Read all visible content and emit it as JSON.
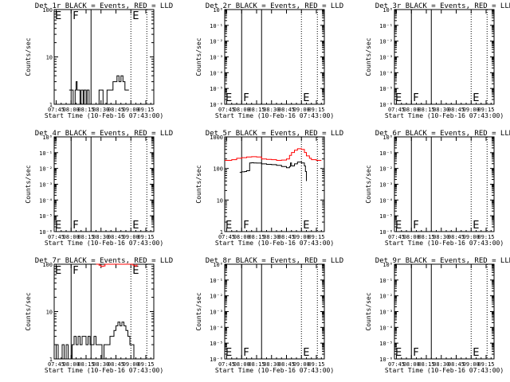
{
  "chart_data": [
    {
      "type": "line",
      "title": "Det 1r BLACK = Events, RED = LLD",
      "xlabel": "Start Time (10-Feb-16 07:43:00)",
      "ylabel": "Counts/sec",
      "x_tick_labels": [
        "07:45",
        "08:00",
        "08:15",
        "08:30",
        "08:45",
        "09:00",
        "09:15"
      ],
      "y_scale": "log",
      "ylim": [
        1,
        100
      ],
      "y_tick_labels": [
        "1",
        "10",
        "100"
      ],
      "markers": {
        "E": "E",
        "F": "F"
      },
      "series": [
        {
          "color": "#000000",
          "x": [
            "07:58",
            "08:00",
            "08:02",
            "08:04",
            "08:05",
            "08:06",
            "08:08",
            "08:09",
            "08:10",
            "08:12",
            "08:13",
            "08:15",
            "08:16",
            "08:18",
            "08:20",
            "08:22",
            "08:24",
            "08:26",
            "08:28",
            "08:30",
            "08:32",
            "08:34",
            "08:36",
            "08:38",
            "08:40",
            "08:42",
            "08:44",
            "08:46",
            "08:48",
            "08:50",
            "08:52",
            "08:54",
            "08:56",
            "08:58"
          ],
          "values": [
            2,
            2,
            1,
            2,
            3,
            2,
            2,
            1,
            2,
            1,
            2,
            1,
            2,
            1,
            1,
            1,
            1,
            1,
            2,
            2,
            1,
            1,
            2,
            2,
            2,
            3,
            3,
            4,
            3,
            4,
            3,
            2,
            2,
            2
          ]
        }
      ]
    },
    {
      "type": "line",
      "title": "Det 2r BLACK = Events, RED = LLD",
      "xlabel": "Start Time (10-Feb-16 07:43:00)",
      "ylabel": "Counts/sec",
      "x_tick_labels": [
        "07:45",
        "08:00",
        "08:15",
        "08:30",
        "08:45",
        "09:00",
        "09:15"
      ],
      "y_scale": "log",
      "ylim": [
        1e-06,
        1
      ],
      "y_tick_labels": [
        "10⁻⁶",
        "10⁻⁵",
        "10⁻⁴",
        "10⁻³",
        "10⁻²",
        "10⁻¹",
        "10⁰"
      ],
      "markers": {
        "E": "E",
        "F": "F"
      },
      "series": []
    },
    {
      "type": "line",
      "title": "Det 3r BLACK = Events, RED = LLD",
      "xlabel": "Start Time (10-Feb-16 07:43:00)",
      "ylabel": "Counts/sec",
      "x_tick_labels": [
        "07:45",
        "08:00",
        "08:15",
        "08:30",
        "08:45",
        "09:00",
        "09:15"
      ],
      "y_scale": "log",
      "ylim": [
        1e-06,
        1
      ],
      "y_tick_labels": [
        "10⁻⁶",
        "10⁻⁵",
        "10⁻⁴",
        "10⁻³",
        "10⁻²",
        "10⁻¹",
        "10⁰"
      ],
      "markers": {
        "E": "E",
        "F": "F"
      },
      "series": []
    },
    {
      "type": "line",
      "title": "Det 4r BLACK = Events, RED = LLD",
      "xlabel": "Start Time (10-Feb-16 07:43:00)",
      "ylabel": "Counts/sec",
      "x_tick_labels": [
        "07:45",
        "08:00",
        "08:15",
        "08:30",
        "08:45",
        "09:00",
        "09:15"
      ],
      "y_scale": "log",
      "ylim": [
        1e-06,
        1
      ],
      "y_tick_labels": [
        "10⁻⁶",
        "10⁻⁵",
        "10⁻⁴",
        "10⁻³",
        "10⁻²",
        "10⁻¹",
        "10⁰"
      ],
      "markers": {
        "E": "E",
        "F": "F"
      },
      "series": []
    },
    {
      "type": "line",
      "title": "Det 5r BLACK = Events, RED = LLD",
      "xlabel": "Start Time (10-Feb-16 07:43:00)",
      "ylabel": "Counts/sec",
      "x_tick_labels": [
        "07:45",
        "08:00",
        "08:15",
        "08:30",
        "08:45",
        "09:00",
        "09:15"
      ],
      "y_scale": "log",
      "ylim": [
        1,
        1000
      ],
      "y_tick_labels": [
        "1",
        "10",
        "100",
        "1000"
      ],
      "markers": {
        "E": "E",
        "F": "F"
      },
      "series": [
        {
          "color": "#ff0000",
          "x": [
            "07:43",
            "07:50",
            "07:55",
            "08:00",
            "08:05",
            "08:10",
            "08:15",
            "08:20",
            "08:25",
            "08:30",
            "08:35",
            "08:40",
            "08:45",
            "08:48",
            "08:50",
            "08:53",
            "08:56",
            "09:00",
            "09:03",
            "09:05",
            "09:08",
            "09:10",
            "09:15",
            "09:20"
          ],
          "values": [
            180,
            190,
            210,
            220,
            230,
            235,
            230,
            200,
            195,
            190,
            180,
            185,
            200,
            260,
            320,
            380,
            420,
            400,
            320,
            250,
            210,
            190,
            180,
            180
          ]
        },
        {
          "color": "#000000",
          "x": [
            "07:58",
            "08:00",
            "08:03",
            "08:05",
            "08:08",
            "08:10",
            "08:12",
            "08:15",
            "08:20",
            "08:25",
            "08:30",
            "08:35",
            "08:40",
            "08:45",
            "08:48",
            "08:49",
            "08:50",
            "08:53",
            "08:56",
            "09:00",
            "09:03",
            "09:04",
            "09:05"
          ],
          "values": [
            75,
            78,
            80,
            85,
            150,
            152,
            150,
            148,
            140,
            135,
            132,
            125,
            115,
            105,
            115,
            150,
            120,
            140,
            160,
            150,
            120,
            80,
            40
          ]
        }
      ]
    },
    {
      "type": "line",
      "title": "Det 6r BLACK = Events, RED = LLD",
      "xlabel": "Start Time (10-Feb-16 07:43:00)",
      "ylabel": "Counts/sec",
      "x_tick_labels": [
        "07:45",
        "08:00",
        "08:15",
        "08:30",
        "08:45",
        "09:00",
        "09:15"
      ],
      "y_scale": "log",
      "ylim": [
        1e-06,
        1
      ],
      "y_tick_labels": [
        "10⁻⁶",
        "10⁻⁵",
        "10⁻⁴",
        "10⁻³",
        "10⁻²",
        "10⁻¹",
        "10⁰"
      ],
      "markers": {
        "E": "E",
        "F": "F"
      },
      "series": []
    },
    {
      "type": "line",
      "title": "Det 7r BLACK = Events, RED = LLD",
      "xlabel": "Start Time (10-Feb-16 07:43:00)",
      "ylabel": "Counts/sec",
      "x_tick_labels": [
        "07:45",
        "08:00",
        "08:15",
        "08:30",
        "08:45",
        "09:00",
        "09:15"
      ],
      "y_scale": "log",
      "ylim": [
        1,
        100
      ],
      "y_tick_labels": [
        "1",
        "10",
        "100"
      ],
      "markers": {
        "E": "E",
        "F": "F"
      },
      "series": [
        {
          "color": "#ff0000",
          "x": [
            "08:25",
            "08:28",
            "08:30",
            "08:32",
            "08:34",
            "09:00",
            "09:02",
            "09:04",
            "09:06"
          ],
          "values": [
            100,
            95,
            90,
            92,
            100,
            100,
            95,
            92,
            100
          ]
        },
        {
          "color": "#000000",
          "x": [
            "07:43",
            "07:45",
            "07:47",
            "07:49",
            "07:51",
            "07:53",
            "07:55",
            "07:57",
            "07:59",
            "08:01",
            "08:03",
            "08:05",
            "08:07",
            "08:09",
            "08:11",
            "08:13",
            "08:15",
            "08:17",
            "08:19",
            "08:21",
            "08:23",
            "08:25",
            "08:27",
            "08:29",
            "08:31",
            "08:33",
            "08:35",
            "08:37",
            "08:39",
            "08:41",
            "08:43",
            "08:45",
            "08:47",
            "08:49",
            "08:51",
            "08:53",
            "08:55",
            "08:57",
            "08:59",
            "09:01",
            "09:03",
            "09:05"
          ],
          "values": [
            1,
            2,
            1,
            1,
            2,
            1,
            2,
            1,
            1,
            2,
            3,
            2,
            3,
            2,
            3,
            3,
            2,
            3,
            2,
            2,
            3,
            2,
            2,
            2,
            1,
            2,
            2,
            2,
            3,
            3,
            4,
            5,
            6,
            5,
            6,
            5,
            4,
            3,
            2,
            2,
            1,
            1
          ]
        }
      ]
    },
    {
      "type": "line",
      "title": "Det 8r BLACK = Events, RED = LLD",
      "xlabel": "Start Time (10-Feb-16 07:43:00)",
      "ylabel": "Counts/sec",
      "x_tick_labels": [
        "07:45",
        "08:00",
        "08:15",
        "08:30",
        "08:45",
        "09:00",
        "09:15"
      ],
      "y_scale": "log",
      "ylim": [
        1e-06,
        1
      ],
      "y_tick_labels": [
        "10⁻⁶",
        "10⁻⁵",
        "10⁻⁴",
        "10⁻³",
        "10⁻²",
        "10⁻¹",
        "10⁰"
      ],
      "markers": {
        "E": "E",
        "F": "F"
      },
      "series": []
    },
    {
      "type": "line",
      "title": "Det 9r BLACK = Events, RED = LLD",
      "xlabel": "Start Time (10-Feb-16 07:43:00)",
      "ylabel": "Counts/sec",
      "x_tick_labels": [
        "07:45",
        "08:00",
        "08:15",
        "08:30",
        "08:45",
        "09:00",
        "09:15"
      ],
      "y_scale": "log",
      "ylim": [
        1e-06,
        1
      ],
      "y_tick_labels": [
        "10⁻⁶",
        "10⁻⁵",
        "10⁻⁴",
        "10⁻³",
        "10⁻²",
        "10⁻¹",
        "10⁰"
      ],
      "markers": {
        "E": "E",
        "F": "F"
      },
      "series": []
    }
  ]
}
